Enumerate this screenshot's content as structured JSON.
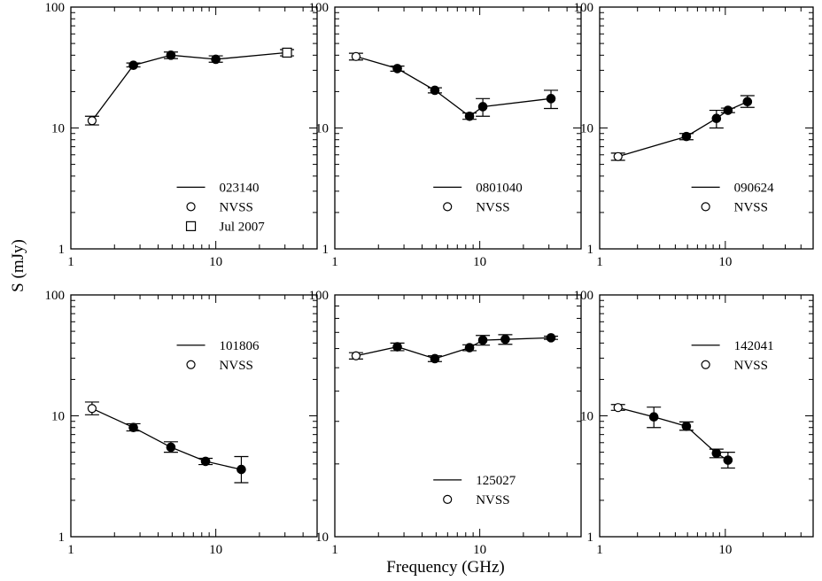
{
  "figure": {
    "xlabel": "Frequency (GHz)",
    "ylabel": "S (mJy)"
  },
  "chart_data": [
    {
      "type": "scatter",
      "xscale": "log",
      "yscale": "log",
      "xlim": [
        1,
        50
      ],
      "ylim": [
        1,
        100
      ],
      "x_ticks": [
        {
          "value": 1,
          "label": "1"
        },
        {
          "value": 10,
          "label": "10"
        }
      ],
      "y_ticks": [
        {
          "value": 1,
          "label": "1"
        },
        {
          "value": 10,
          "label": "10"
        },
        {
          "value": 100,
          "label": "100"
        }
      ],
      "legend_position": "bottom-right",
      "legend": [
        {
          "kind": "line",
          "label": "023140"
        },
        {
          "kind": "open-circle",
          "label": "NVSS"
        },
        {
          "kind": "open-square",
          "label": "Jul 2007"
        }
      ],
      "line": {
        "x": [
          1.4,
          2.7,
          4.9,
          10,
          31
        ],
        "y": [
          11.5,
          33,
          40,
          37,
          42
        ]
      },
      "points": [
        {
          "x": 1.4,
          "y": 11.5,
          "lo": 10.6,
          "hi": 12.5,
          "marker": "open-circle"
        },
        {
          "x": 2.7,
          "y": 33,
          "lo": 32,
          "hi": 34.5,
          "marker": "filled-circle"
        },
        {
          "x": 4.9,
          "y": 40,
          "lo": 37.5,
          "hi": 42.5,
          "marker": "filled-circle"
        },
        {
          "x": 10,
          "y": 37,
          "lo": 35,
          "hi": 39.5,
          "marker": "filled-circle"
        },
        {
          "x": 31,
          "y": 42,
          "lo": 39.5,
          "hi": 44.5,
          "marker": "open-square"
        }
      ]
    },
    {
      "type": "scatter",
      "xscale": "log",
      "yscale": "log",
      "xlim": [
        1,
        50
      ],
      "ylim": [
        1,
        100
      ],
      "x_ticks": [
        {
          "value": 1,
          "label": "1"
        },
        {
          "value": 10,
          "label": "10"
        }
      ],
      "y_ticks": [
        {
          "value": 1,
          "label": "1"
        },
        {
          "value": 10,
          "label": "10"
        },
        {
          "value": 100,
          "label": "100"
        }
      ],
      "legend_position": "right",
      "legend": [
        {
          "kind": "line",
          "label": "0801040"
        },
        {
          "kind": "open-circle",
          "label": "NVSS"
        }
      ],
      "line": {
        "x": [
          1.4,
          2.7,
          4.9,
          8.5,
          10.5,
          31
        ],
        "y": [
          39,
          31,
          20.5,
          12.5,
          15,
          17.5
        ]
      },
      "points": [
        {
          "x": 1.4,
          "y": 39,
          "lo": 36.5,
          "hi": 41.5,
          "marker": "open-circle"
        },
        {
          "x": 2.7,
          "y": 31,
          "lo": 29.5,
          "hi": 32.5,
          "marker": "filled-circle"
        },
        {
          "x": 4.9,
          "y": 20.5,
          "lo": 19.5,
          "hi": 21.5,
          "marker": "filled-circle"
        },
        {
          "x": 8.5,
          "y": 12.5,
          "lo": 11.8,
          "hi": 13.3,
          "marker": "filled-circle"
        },
        {
          "x": 10.5,
          "y": 15,
          "lo": 12.5,
          "hi": 17.5,
          "marker": "filled-circle"
        },
        {
          "x": 31,
          "y": 17.5,
          "lo": 14.5,
          "hi": 20.5,
          "marker": "filled-circle"
        }
      ]
    },
    {
      "type": "scatter",
      "xscale": "log",
      "yscale": "log",
      "xlim": [
        1,
        50
      ],
      "ylim": [
        1,
        100
      ],
      "x_ticks": [
        {
          "value": 1,
          "label": "1"
        },
        {
          "value": 10,
          "label": "10"
        }
      ],
      "y_ticks": [
        {
          "value": 1,
          "label": "1"
        },
        {
          "value": 10,
          "label": "10"
        },
        {
          "value": 100,
          "label": "100"
        }
      ],
      "legend_position": "right",
      "legend": [
        {
          "kind": "line",
          "label": "090624"
        },
        {
          "kind": "open-circle",
          "label": "NVSS"
        }
      ],
      "line": {
        "x": [
          1.4,
          4.9,
          8.5,
          10.5,
          15
        ],
        "y": [
          5.8,
          8.5,
          12,
          14,
          16.5
        ]
      },
      "points": [
        {
          "x": 1.4,
          "y": 5.8,
          "lo": 5.4,
          "hi": 6.2,
          "marker": "open-circle"
        },
        {
          "x": 4.9,
          "y": 8.5,
          "lo": 8.0,
          "hi": 9.0,
          "marker": "filled-circle"
        },
        {
          "x": 8.5,
          "y": 12,
          "lo": 10,
          "hi": 14,
          "marker": "filled-circle"
        },
        {
          "x": 10.5,
          "y": 14,
          "lo": 13.4,
          "hi": 14.6,
          "marker": "filled-circle"
        },
        {
          "x": 15,
          "y": 16.5,
          "lo": 14.8,
          "hi": 18.5,
          "marker": "filled-circle"
        }
      ]
    },
    {
      "type": "scatter",
      "xscale": "log",
      "yscale": "log",
      "xlim": [
        1,
        50
      ],
      "ylim": [
        1,
        100
      ],
      "x_ticks": [
        {
          "value": 1,
          "label": "1"
        },
        {
          "value": 10,
          "label": "10"
        }
      ],
      "y_ticks": [
        {
          "value": 1,
          "label": "1"
        },
        {
          "value": 10,
          "label": "10"
        },
        {
          "value": 100,
          "label": "100"
        }
      ],
      "legend_position": "top-right",
      "legend": [
        {
          "kind": "line",
          "label": "101806"
        },
        {
          "kind": "open-circle",
          "label": "NVSS"
        }
      ],
      "line": {
        "x": [
          1.4,
          2.7,
          4.9,
          8.5,
          15
        ],
        "y": [
          11.5,
          8.0,
          5.5,
          4.2,
          3.6
        ]
      },
      "points": [
        {
          "x": 1.4,
          "y": 11.5,
          "lo": 10.2,
          "hi": 13,
          "marker": "open-circle"
        },
        {
          "x": 2.7,
          "y": 8.0,
          "lo": 7.5,
          "hi": 8.6,
          "marker": "filled-circle"
        },
        {
          "x": 4.9,
          "y": 5.5,
          "lo": 5.0,
          "hi": 6.1,
          "marker": "filled-circle"
        },
        {
          "x": 8.5,
          "y": 4.2,
          "lo": 3.95,
          "hi": 4.45,
          "marker": "filled-circle"
        },
        {
          "x": 15,
          "y": 3.6,
          "lo": 2.8,
          "hi": 4.6,
          "marker": "filled-circle"
        }
      ]
    },
    {
      "type": "scatter",
      "xscale": "log",
      "yscale": "log",
      "xlim": [
        1,
        50
      ],
      "ylim": [
        10,
        100
      ],
      "x_ticks": [
        {
          "value": 1,
          "label": "1"
        },
        {
          "value": 10,
          "label": "10"
        }
      ],
      "y_ticks": [
        {
          "value": 10,
          "label": "10"
        },
        {
          "value": 100,
          "label": "100"
        }
      ],
      "legend_position": "bottom-right",
      "legend": [
        {
          "kind": "line",
          "label": "125027"
        },
        {
          "kind": "open-circle",
          "label": "NVSS"
        }
      ],
      "line": {
        "x": [
          1.4,
          2.7,
          4.9,
          8.5,
          10.5,
          15,
          31
        ],
        "y": [
          56,
          61,
          54.5,
          60.5,
          65,
          65.5,
          66.5
        ]
      },
      "points": [
        {
          "x": 1.4,
          "y": 56,
          "lo": 54.3,
          "hi": 57.7,
          "marker": "open-circle"
        },
        {
          "x": 2.7,
          "y": 61,
          "lo": 58.8,
          "hi": 63.2,
          "marker": "filled-circle"
        },
        {
          "x": 4.9,
          "y": 54.5,
          "lo": 53.0,
          "hi": 56.0,
          "marker": "filled-circle"
        },
        {
          "x": 8.5,
          "y": 60.5,
          "lo": 58.8,
          "hi": 62.2,
          "marker": "filled-circle"
        },
        {
          "x": 10.5,
          "y": 65,
          "lo": 62.0,
          "hi": 68.0,
          "marker": "filled-circle"
        },
        {
          "x": 15,
          "y": 65.5,
          "lo": 62.5,
          "hi": 68.5,
          "marker": "filled-circle"
        },
        {
          "x": 31,
          "y": 66.5,
          "lo": 65.5,
          "hi": 67.5,
          "marker": "filled-circle"
        }
      ]
    },
    {
      "type": "scatter",
      "xscale": "log",
      "yscale": "log",
      "xlim": [
        1,
        50
      ],
      "ylim": [
        1,
        100
      ],
      "x_ticks": [
        {
          "value": 1,
          "label": "1"
        },
        {
          "value": 10,
          "label": "10"
        }
      ],
      "y_ticks": [
        {
          "value": 1,
          "label": "1"
        },
        {
          "value": 10,
          "label": "10"
        },
        {
          "value": 100,
          "label": "100"
        }
      ],
      "legend_position": "top-right",
      "legend": [
        {
          "kind": "line",
          "label": "142041"
        },
        {
          "kind": "open-circle",
          "label": "NVSS"
        }
      ],
      "line": {
        "x": [
          1.4,
          2.7,
          4.9,
          8.5,
          10.5
        ],
        "y": [
          11.7,
          9.8,
          8.2,
          4.9,
          4.3
        ]
      },
      "points": [
        {
          "x": 1.4,
          "y": 11.7,
          "lo": 11.1,
          "hi": 12.4,
          "marker": "open-circle"
        },
        {
          "x": 2.7,
          "y": 9.8,
          "lo": 8.0,
          "hi": 11.8,
          "marker": "filled-circle"
        },
        {
          "x": 4.9,
          "y": 8.2,
          "lo": 7.6,
          "hi": 8.9,
          "marker": "filled-circle"
        },
        {
          "x": 8.5,
          "y": 4.9,
          "lo": 4.5,
          "hi": 5.3,
          "marker": "filled-circle"
        },
        {
          "x": 10.5,
          "y": 4.3,
          "lo": 3.7,
          "hi": 5.0,
          "marker": "filled-circle"
        }
      ]
    }
  ]
}
